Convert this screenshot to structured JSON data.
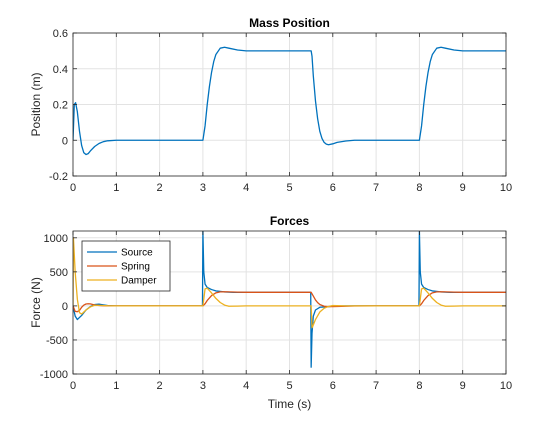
{
  "chart_data": [
    {
      "type": "line",
      "title": "Mass Position",
      "xlabel": "",
      "ylabel": "Position (m)",
      "xlim": [
        0,
        10
      ],
      "ylim": [
        -0.2,
        0.6
      ],
      "xticks": [
        0,
        1,
        2,
        3,
        4,
        5,
        6,
        7,
        8,
        9,
        10
      ],
      "yticks": [
        -0.2,
        0,
        0.2,
        0.4,
        0.6
      ],
      "ytick_labels": [
        "-0.2",
        "0",
        "0.2",
        "0.4",
        "0.6"
      ],
      "grid": true,
      "series": [
        {
          "color": "#0072BD",
          "x": [
            0,
            0.03,
            0.06,
            0.1,
            0.15,
            0.2,
            0.25,
            0.3,
            0.35,
            0.4,
            0.5,
            0.6,
            0.7,
            0.8,
            1.0,
            1.5,
            2.0,
            2.5,
            3.0,
            3.05,
            3.1,
            3.15,
            3.2,
            3.25,
            3.3,
            3.4,
            3.5,
            3.6,
            3.8,
            4.0,
            4.5,
            5.0,
            5.5,
            5.52,
            5.55,
            5.6,
            5.65,
            5.7,
            5.75,
            5.8,
            5.85,
            5.9,
            6.0,
            6.1,
            6.3,
            6.5,
            7.0,
            7.5,
            8.0,
            8.05,
            8.1,
            8.15,
            8.2,
            8.25,
            8.3,
            8.4,
            8.5,
            8.6,
            8.8,
            9.0,
            9.5,
            10.0
          ],
          "y": [
            0,
            0.2,
            0.21,
            0.16,
            0.05,
            -0.03,
            -0.07,
            -0.08,
            -0.075,
            -0.06,
            -0.035,
            -0.018,
            -0.008,
            -0.003,
            0,
            0,
            0,
            0,
            0,
            0.08,
            0.2,
            0.3,
            0.38,
            0.44,
            0.48,
            0.515,
            0.52,
            0.515,
            0.505,
            0.5,
            0.5,
            0.5,
            0.5,
            0.47,
            0.36,
            0.22,
            0.12,
            0.05,
            0.01,
            -0.012,
            -0.022,
            -0.025,
            -0.02,
            -0.012,
            -0.004,
            0,
            0,
            0,
            0,
            0.08,
            0.2,
            0.3,
            0.38,
            0.44,
            0.48,
            0.515,
            0.52,
            0.515,
            0.505,
            0.5,
            0.5,
            0.5
          ]
        }
      ]
    },
    {
      "type": "line",
      "title": "Forces",
      "xlabel": "Time (s)",
      "ylabel": "Force (N)",
      "xlim": [
        0,
        10
      ],
      "ylim": [
        -1000,
        1100
      ],
      "xticks": [
        0,
        1,
        2,
        3,
        4,
        5,
        6,
        7,
        8,
        9,
        10
      ],
      "yticks": [
        -1000,
        -500,
        0,
        500,
        1000
      ],
      "ytick_labels": [
        "-1000",
        "-500",
        "0",
        "500",
        "1000"
      ],
      "grid": true,
      "legend_position": "top-left",
      "series": [
        {
          "name": "Source",
          "color": "#0072BD",
          "x": [
            0,
            0.05,
            0.1,
            0.2,
            0.3,
            0.4,
            0.5,
            0.6,
            0.7,
            0.8,
            1.0,
            2.0,
            2.99,
            3.0,
            3.02,
            3.05,
            3.1,
            3.2,
            3.3,
            3.5,
            3.7,
            4.0,
            4.5,
            5.0,
            5.49,
            5.5,
            5.52,
            5.55,
            5.6,
            5.7,
            5.8,
            6.0,
            6.3,
            7.0,
            7.99,
            8.0,
            8.02,
            8.05,
            8.1,
            8.2,
            8.3,
            8.5,
            8.7,
            9.0,
            9.5,
            10.0
          ],
          "y": [
            0,
            -150,
            -200,
            -140,
            -60,
            -10,
            20,
            25,
            15,
            5,
            0,
            0,
            0,
            1100,
            500,
            320,
            270,
            240,
            220,
            205,
            200,
            200,
            200,
            200,
            200,
            -900,
            -400,
            -150,
            -60,
            -20,
            -15,
            -5,
            0,
            0,
            0,
            1100,
            500,
            320,
            270,
            240,
            220,
            205,
            200,
            200,
            200,
            200
          ]
        },
        {
          "name": "Spring",
          "color": "#D95319",
          "x": [
            0,
            0.05,
            0.1,
            0.15,
            0.2,
            0.25,
            0.3,
            0.35,
            0.4,
            0.5,
            0.6,
            0.7,
            0.8,
            1.0,
            2.0,
            3.0,
            3.05,
            3.1,
            3.2,
            3.3,
            3.4,
            3.5,
            3.6,
            3.8,
            4.0,
            5.0,
            5.5,
            5.55,
            5.6,
            5.65,
            5.7,
            5.8,
            5.9,
            6.0,
            6.2,
            6.5,
            7.0,
            8.0,
            8.05,
            8.1,
            8.2,
            8.3,
            8.4,
            8.5,
            8.6,
            8.8,
            9.0,
            10.0
          ],
          "y": [
            0,
            -80,
            -85,
            -65,
            -20,
            12,
            28,
            32,
            30,
            14,
            7,
            3,
            1,
            0,
            0,
            0,
            32,
            80,
            152,
            192,
            206,
            208,
            206,
            202,
            200,
            200,
            200,
            145,
            88,
            48,
            20,
            -5,
            -10,
            -10,
            -6,
            -1,
            0,
            0,
            32,
            80,
            152,
            192,
            206,
            208,
            206,
            202,
            200,
            200
          ]
        },
        {
          "name": "Damper",
          "color": "#EDB120",
          "x": [
            0,
            0.01,
            0.05,
            0.1,
            0.15,
            0.2,
            0.3,
            0.4,
            0.5,
            0.6,
            0.8,
            1.0,
            2.0,
            3.0,
            3.05,
            3.1,
            3.2,
            3.3,
            3.4,
            3.5,
            3.6,
            3.8,
            4.0,
            5.0,
            5.5,
            5.52,
            5.55,
            5.6,
            5.7,
            5.8,
            5.9,
            6.0,
            6.3,
            7.0,
            8.0,
            8.05,
            8.1,
            8.2,
            8.3,
            8.4,
            8.5,
            8.6,
            8.8,
            9.0,
            10.0
          ],
          "y": [
            0,
            1000,
            500,
            100,
            -100,
            -120,
            -60,
            -15,
            10,
            8,
            2,
            0,
            0,
            0,
            250,
            260,
            190,
            110,
            50,
            12,
            -5,
            -3,
            0,
            0,
            0,
            -320,
            -280,
            -200,
            -90,
            -35,
            -8,
            5,
            0,
            0,
            0,
            250,
            260,
            190,
            110,
            50,
            12,
            -5,
            -3,
            0,
            0
          ]
        }
      ]
    }
  ]
}
